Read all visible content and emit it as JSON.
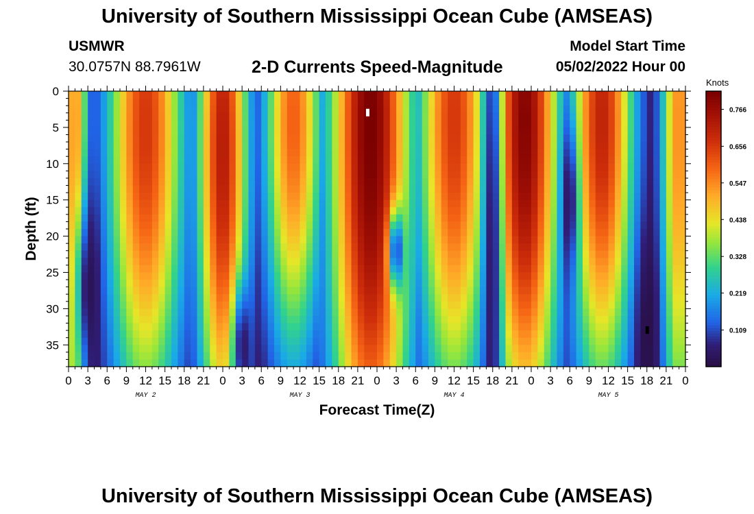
{
  "header": {
    "title": "University of Southern Mississippi Ocean Cube (AMSEAS)",
    "station": "USMWR",
    "coordinates": "30.0757N  88.7961W",
    "subtitle": "2-D Currents Speed-Magnitude",
    "model_start_label": "Model Start Time",
    "model_start_value": "05/02/2022 Hour 00"
  },
  "footer": {
    "title": "University of Southern Mississippi Ocean Cube (AMSEAS)"
  },
  "chart_data": {
    "type": "heatmap",
    "xlabel": "Forecast Time(Z)",
    "ylabel": "Depth (ft)",
    "x_range_hours": [
      0,
      96
    ],
    "y_range_ft": [
      0,
      38
    ],
    "y_ticks": [
      0,
      5,
      10,
      15,
      20,
      25,
      30,
      35
    ],
    "x_tick_labels": [
      "0",
      "3",
      "6",
      "9",
      "12",
      "15",
      "18",
      "21",
      "0",
      "3",
      "6",
      "9",
      "12",
      "15",
      "18",
      "21",
      "0",
      "3",
      "6",
      "9",
      "12",
      "15",
      "18",
      "21",
      "0",
      "3",
      "6",
      "9",
      "12",
      "15",
      "18",
      "21",
      "0"
    ],
    "day_labels": [
      {
        "label": "MAY 2",
        "hour": 12
      },
      {
        "label": "MAY 3",
        "hour": 36
      },
      {
        "label": "MAY 4",
        "hour": 60
      },
      {
        "label": "MAY 5",
        "hour": 84
      }
    ],
    "colorbar": {
      "unit": "Knots",
      "min": 0.0,
      "max": 0.82,
      "tick_labels": [
        "0.766",
        "0.656",
        "0.547",
        "0.438",
        "0.328",
        "0.219",
        "0.109"
      ],
      "tick_values": [
        0.766,
        0.656,
        0.547,
        0.438,
        0.328,
        0.219,
        0.109
      ]
    },
    "hotspots": [
      {
        "hour": 1,
        "depth": 10,
        "speed": 0.55,
        "sx": 1.5,
        "sd": 40
      },
      {
        "hour": 12,
        "depth": 5,
        "speed": 0.66,
        "sx": 4.2,
        "sd": 30
      },
      {
        "hour": 24,
        "depth": 8,
        "speed": 0.72,
        "sx": 2.8,
        "sd": 32
      },
      {
        "hour": 35,
        "depth": 4,
        "speed": 0.6,
        "sx": 3.2,
        "sd": 24
      },
      {
        "hour": 47,
        "depth": 5,
        "speed": 0.82,
        "sx": 4.5,
        "sd": 42
      },
      {
        "hour": 60,
        "depth": 4,
        "speed": 0.66,
        "sx": 4.0,
        "sd": 30
      },
      {
        "hour": 71,
        "depth": 4,
        "speed": 0.8,
        "sx": 3.8,
        "sd": 34
      },
      {
        "hour": 83,
        "depth": 4,
        "speed": 0.7,
        "sx": 3.5,
        "sd": 28
      },
      {
        "hour": 95,
        "depth": 5,
        "speed": 0.55,
        "sx": 2.0,
        "sd": 36
      }
    ],
    "coldspots": [
      {
        "hour": 3,
        "depth": 27,
        "sx": 1.3,
        "sd": 9
      },
      {
        "hour": 27,
        "depth": 35,
        "sx": 1.0,
        "sd": 6
      },
      {
        "hour": 51,
        "depth": 22,
        "sx": 0.8,
        "sd": 4
      },
      {
        "hour": 66,
        "depth": 20,
        "sx": 1.0,
        "sd": 30
      },
      {
        "hour": 78,
        "depth": 15,
        "sx": 0.9,
        "sd": 8
      },
      {
        "hour": 90,
        "depth": 33,
        "sx": 1.2,
        "sd": 10
      }
    ],
    "marks": [
      {
        "hour": 46.5,
        "depth": 3,
        "color": "#ffffff"
      },
      {
        "hour": 90,
        "depth": 33,
        "color": "#000000"
      }
    ]
  }
}
